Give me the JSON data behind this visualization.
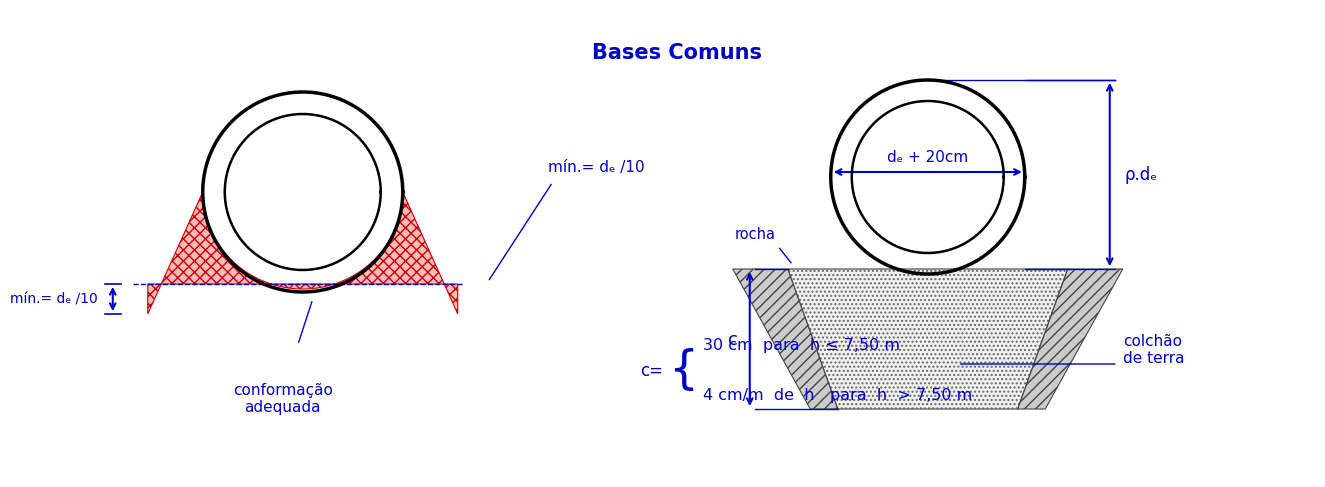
{
  "title": "Bases Comuns",
  "blue": "#0000CC",
  "black": "#000000",
  "white": "#FFFFFF",
  "red_face": "#FFBBBB",
  "red_edge": "#CC0000",
  "gray_face": "#DDDDDD",
  "gray_edge": "#555555",
  "label_min_left": "mín.= dₑ /10",
  "label_min_right": "mín.= dₑ /10",
  "label_conformacao": "conformação\nadequada",
  "label_de_20cm": "dₑ + 20cm",
  "label_rho_de": "ρ.dₑ",
  "label_rocha": "rocha",
  "label_colchao": "colchão\nde terra",
  "label_c": "c",
  "formula_prefix": "c=",
  "formula_line1": "30 cm  para  h ≤ 7,50 m",
  "formula_line2": "4 cm/m  de  h   para  h  > 7,50 m"
}
